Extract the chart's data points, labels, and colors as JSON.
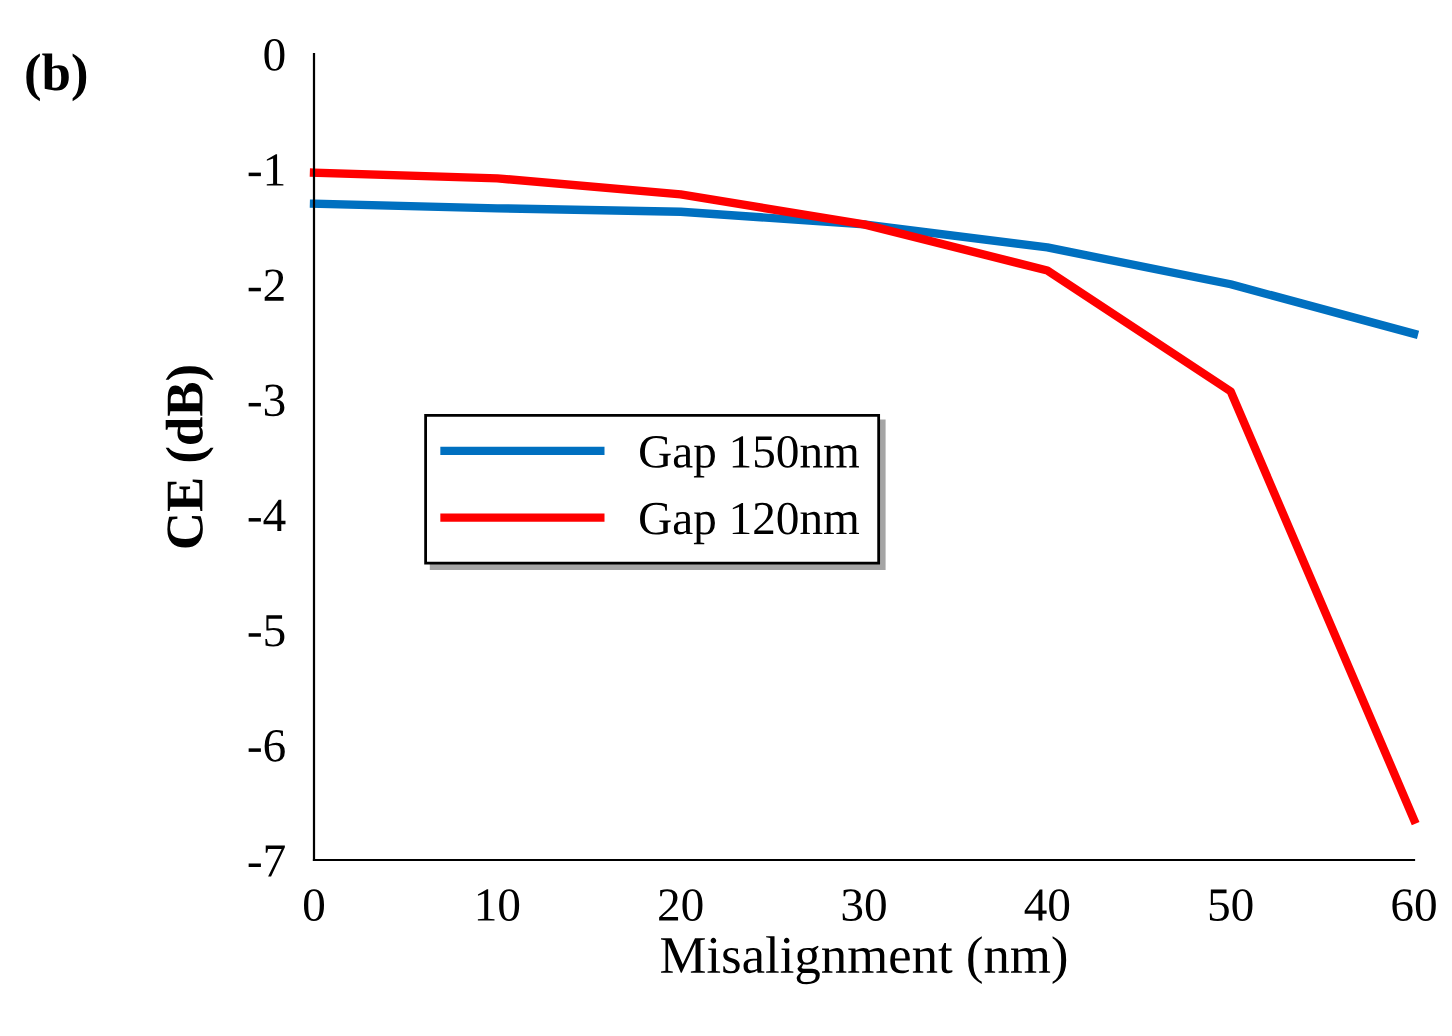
{
  "chart_data": {
    "type": "line",
    "xlabel": "Misalignment (nm)",
    "ylabel": "CE (dB)",
    "annotations": [
      "(b)"
    ],
    "x": [
      0,
      10,
      20,
      30,
      40,
      50,
      60
    ],
    "series": [
      {
        "name": "Gap 150nm",
        "color": "#0070c0",
        "values": [
          -1.3,
          -1.34,
          -1.37,
          -1.48,
          -1.68,
          -2.0,
          -2.43
        ]
      },
      {
        "name": "Gap 120nm",
        "color": "#ff0000",
        "values": [
          -1.03,
          -1.08,
          -1.22,
          -1.48,
          -1.88,
          -2.93,
          -6.65
        ]
      }
    ],
    "xlim": [
      0,
      60
    ],
    "xticks": [
      0,
      10,
      20,
      30,
      40,
      50,
      60
    ],
    "ylim": [
      -7,
      0
    ],
    "yticks": [
      -7,
      -6,
      -5,
      -4,
      -3,
      -2,
      -1,
      0
    ],
    "grid": false,
    "legend": "center left",
    "marker": "none",
    "line_style": "solid"
  }
}
